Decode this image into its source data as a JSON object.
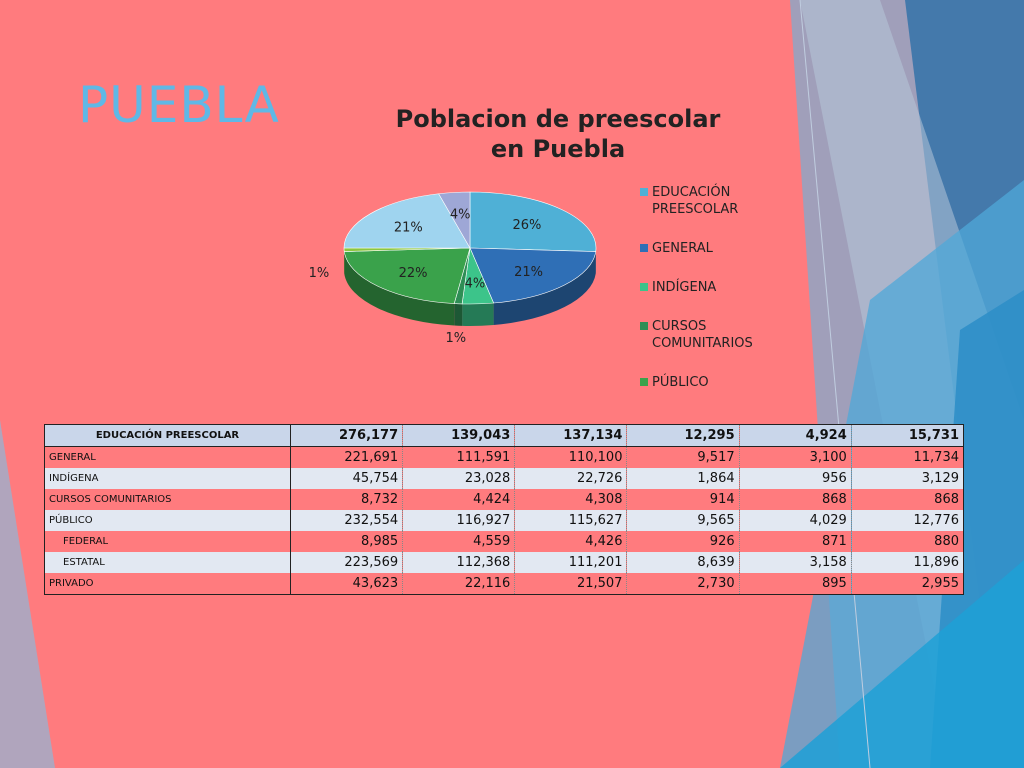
{
  "slide": {
    "title": "PUEBLA",
    "colors": {
      "background": "#ff7b7e",
      "title": "#5fb8e6"
    }
  },
  "chart_data": {
    "type": "pie",
    "title": "Poblacion de preescolar en Puebla",
    "legend_position": "right",
    "slices": [
      {
        "label": "EDUCACIÓN PREESCOLAR",
        "value": 26,
        "pct_label": "26%",
        "color": "#4fb0d6"
      },
      {
        "label": "GENERAL",
        "value": 21,
        "pct_label": "21%",
        "color": "#2f6fb6"
      },
      {
        "label": "INDÍGENA",
        "value": 4,
        "pct_label": "4%",
        "color": "#3cc48a"
      },
      {
        "label": "CURSOS COMUNITARIOS",
        "value": 1,
        "pct_label": "1%",
        "color": "#2e8e55"
      },
      {
        "label": "PÚBLICO",
        "value": 22,
        "pct_label": "22%",
        "color": "#3aa24b"
      },
      {
        "label": "",
        "value": 1,
        "pct_label": "1%",
        "color": "#8dc63f"
      },
      {
        "label": "",
        "value": 21,
        "pct_label": "21%",
        "color": "#9fd4ef"
      },
      {
        "label": "",
        "value": 4,
        "pct_label": "4%",
        "color": "#9ea7d6"
      }
    ],
    "legend_count": 5
  },
  "table": {
    "rows": [
      {
        "label": "EDUCACIÓN PREESCOLAR",
        "values": [
          "276,177",
          "139,043",
          "137,134",
          "12,295",
          "4,924",
          "15,731"
        ],
        "header": true
      },
      {
        "label": "GENERAL",
        "values": [
          "221,691",
          "111,591",
          "110,100",
          "9,517",
          "3,100",
          "11,734"
        ]
      },
      {
        "label": "INDÍGENA",
        "values": [
          "45,754",
          "23,028",
          "22,726",
          "1,864",
          "956",
          "3,129"
        ]
      },
      {
        "label": "CURSOS COMUNITARIOS",
        "values": [
          "8,732",
          "4,424",
          "4,308",
          "914",
          "868",
          "868"
        ]
      },
      {
        "label": "PÚBLICO",
        "values": [
          "232,554",
          "116,927",
          "115,627",
          "9,565",
          "4,029",
          "12,776"
        ]
      },
      {
        "label": "FEDERAL",
        "values": [
          "8,985",
          "4,559",
          "4,426",
          "926",
          "871",
          "880"
        ],
        "indent": true
      },
      {
        "label": "ESTATAL",
        "values": [
          "223,569",
          "112,368",
          "111,201",
          "8,639",
          "3,158",
          "11,896"
        ],
        "indent": true
      },
      {
        "label": "PRIVADO",
        "values": [
          "43,623",
          "22,116",
          "21,507",
          "2,730",
          "895",
          "2,955"
        ]
      }
    ]
  }
}
